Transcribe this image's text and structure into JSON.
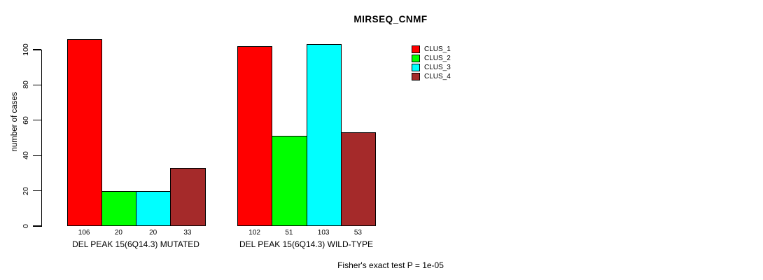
{
  "chart_data": {
    "type": "bar",
    "title": "MIRSEQ_CNMF",
    "ylabel": "number of cases",
    "footnote": "Fisher's exact test P = 1e-05",
    "yticks": [
      0,
      20,
      40,
      60,
      80,
      100
    ],
    "ylim": [
      0,
      110
    ],
    "grid": false,
    "legend_position": "top-right",
    "series": [
      {
        "name": "CLUS_1",
        "color": "#FF0000"
      },
      {
        "name": "CLUS_2",
        "color": "#00FF00"
      },
      {
        "name": "CLUS_3",
        "color": "#00FFFF"
      },
      {
        "name": "CLUS_4",
        "color": "#A52A2A"
      }
    ],
    "groups": [
      {
        "label": "DEL PEAK 15(6Q14.3) MUTATED",
        "values": [
          106,
          20,
          20,
          33
        ]
      },
      {
        "label": "DEL PEAK 15(6Q14.3) WILD-TYPE",
        "values": [
          102,
          51,
          103,
          53
        ]
      }
    ]
  }
}
